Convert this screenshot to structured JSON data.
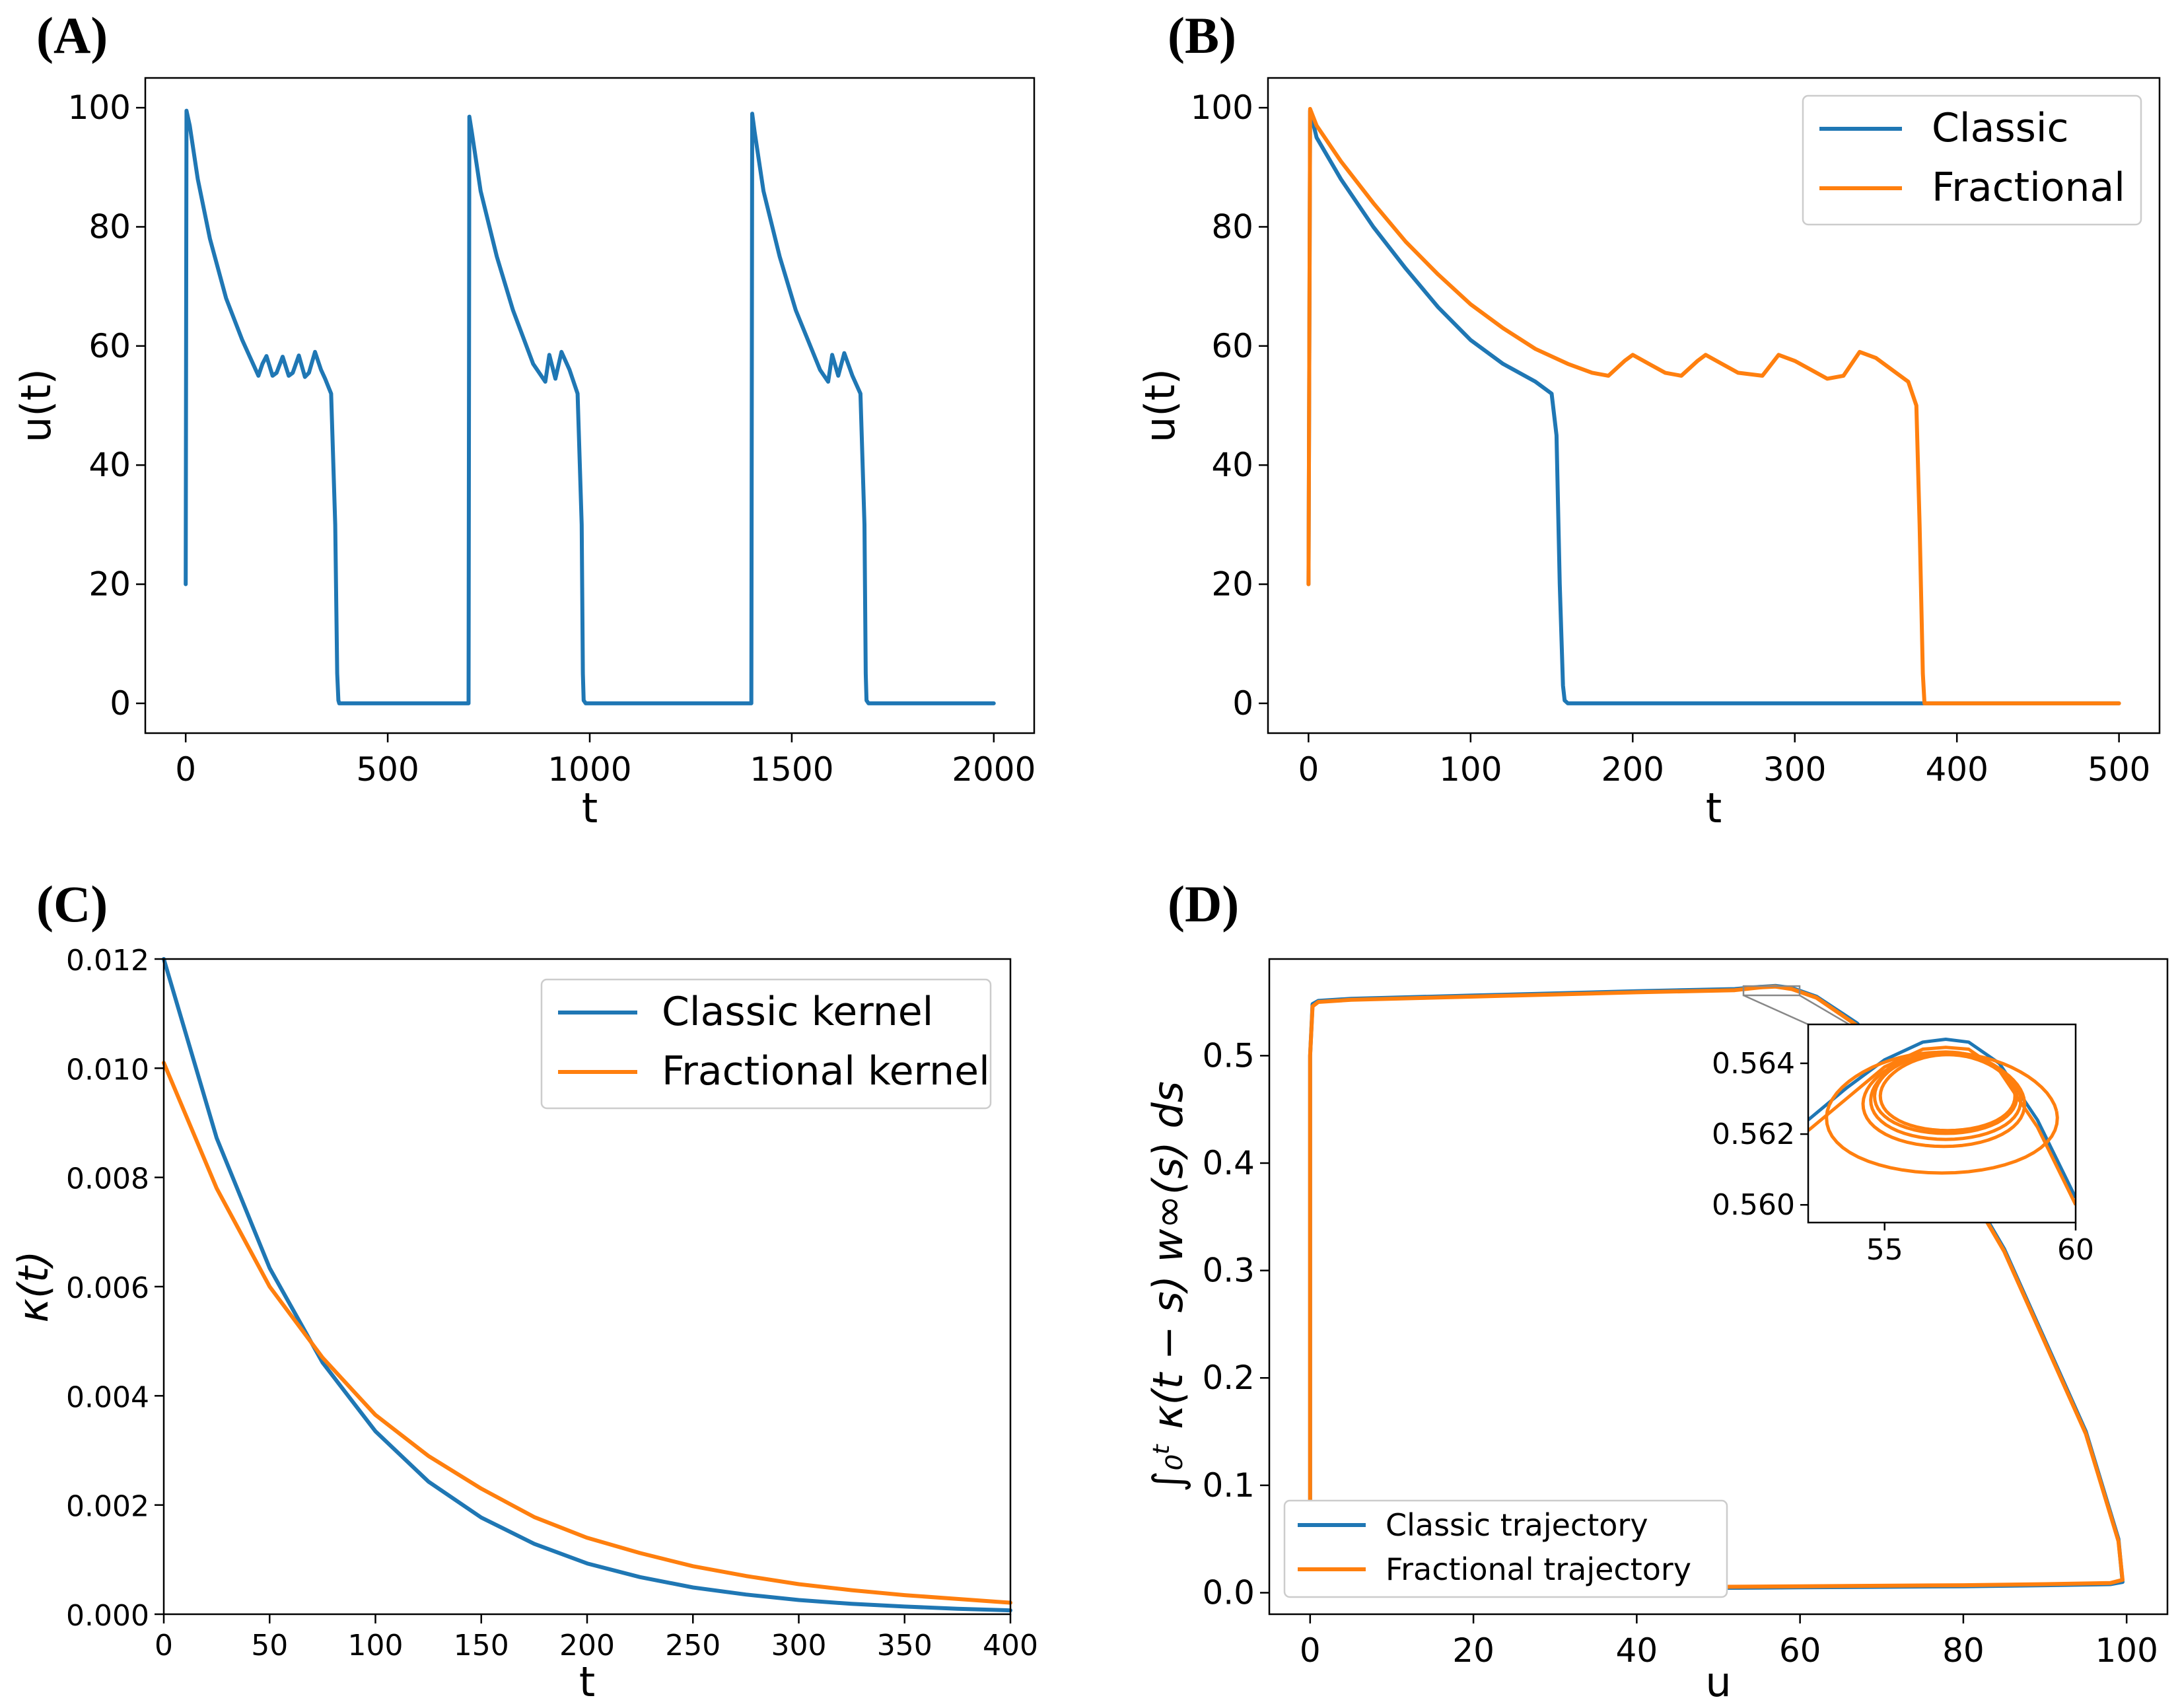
{
  "colors": {
    "classic": "#1f77b4",
    "fractional": "#ff7f0e"
  },
  "chart_data": [
    {
      "panel": "(A)",
      "type": "line",
      "xlabel": "t",
      "ylabel": "u(t)",
      "xlim": [
        -100,
        2100
      ],
      "ylim": [
        -5,
        105
      ],
      "xticks": [
        0,
        500,
        1000,
        1500,
        2000
      ],
      "xtick_labels": [
        "0",
        "500",
        "1000",
        "1500",
        "2000"
      ],
      "yticks": [
        0,
        20,
        40,
        60,
        80,
        100
      ],
      "ytick_labels": [
        "0",
        "20",
        "40",
        "60",
        "80",
        "100"
      ],
      "series": [
        {
          "name": "u(t)",
          "color": "#1f77b4",
          "x": [
            0,
            2,
            10,
            30,
            60,
            100,
            140,
            180,
            190,
            200,
            215,
            225,
            240,
            255,
            265,
            280,
            295,
            305,
            320,
            335,
            345,
            360,
            370,
            375,
            378,
            380,
            385,
            700,
            702,
            708,
            730,
            770,
            810,
            860,
            890,
            900,
            915,
            930,
            950,
            970,
            980,
            983,
            985,
            990,
            1400,
            1402,
            1408,
            1430,
            1470,
            1510,
            1570,
            1590,
            1600,
            1615,
            1630,
            1650,
            1670,
            1680,
            1683,
            1685,
            1690,
            2000
          ],
          "y": [
            20,
            99.5,
            97,
            88,
            78,
            68,
            61,
            55,
            57,
            58.3,
            55,
            55.5,
            58.2,
            55,
            55.5,
            58.4,
            54.8,
            55.5,
            59,
            56,
            54.5,
            52,
            30,
            5,
            0.5,
            0,
            0,
            0,
            98.5,
            96,
            86,
            75,
            66,
            57,
            54,
            58.5,
            54.5,
            59,
            56,
            52,
            30,
            5,
            0.5,
            0,
            0,
            99,
            96,
            86,
            75,
            66,
            56,
            54,
            58.5,
            55,
            58.8,
            55,
            52,
            30,
            5,
            0.5,
            0,
            0
          ]
        }
      ]
    },
    {
      "panel": "(B)",
      "type": "line",
      "xlabel": "t",
      "ylabel": "u(t)",
      "xlim": [
        -25,
        525
      ],
      "ylim": [
        -5,
        105
      ],
      "xticks": [
        0,
        100,
        200,
        300,
        400,
        500
      ],
      "xtick_labels": [
        "0",
        "100",
        "200",
        "300",
        "400",
        "500"
      ],
      "yticks": [
        0,
        20,
        40,
        60,
        80,
        100
      ],
      "ytick_labels": [
        "0",
        "20",
        "40",
        "60",
        "80",
        "100"
      ],
      "legend_location": "upper right",
      "series": [
        {
          "name": "Classic",
          "color": "#1f77b4",
          "x": [
            0,
            1,
            5,
            20,
            40,
            60,
            80,
            100,
            120,
            140,
            150,
            153,
            155,
            157,
            158,
            160,
            500
          ],
          "y": [
            20,
            99.5,
            95,
            88,
            80,
            73,
            66.5,
            61,
            57,
            54,
            52,
            45,
            20,
            3,
            0.5,
            0,
            0
          ]
        },
        {
          "name": "Fractional",
          "color": "#ff7f0e",
          "x": [
            0,
            1,
            5,
            20,
            40,
            60,
            80,
            100,
            120,
            140,
            160,
            175,
            185,
            195,
            200,
            210,
            220,
            230,
            240,
            245,
            255,
            265,
            280,
            290,
            300,
            310,
            320,
            330,
            340,
            350,
            360,
            370,
            375,
            377,
            379,
            380,
            500
          ],
          "y": [
            20,
            99.8,
            97,
            91,
            84,
            77.5,
            72,
            67,
            63,
            59.5,
            57,
            55.5,
            55,
            57.5,
            58.5,
            57,
            55.5,
            55,
            57.5,
            58.5,
            57,
            55.5,
            55,
            58.5,
            57.5,
            56,
            54.5,
            55,
            59,
            58,
            56,
            54,
            50,
            30,
            5,
            0,
            0
          ]
        }
      ]
    },
    {
      "panel": "(C)",
      "type": "line",
      "xlabel": "t",
      "ylabel": "κ(t)",
      "xlim": [
        0,
        400
      ],
      "ylim": [
        0,
        0.012
      ],
      "xticks": [
        0,
        50,
        100,
        150,
        200,
        250,
        300,
        350,
        400
      ],
      "xtick_labels": [
        "0",
        "50",
        "100",
        "150",
        "200",
        "250",
        "300",
        "350",
        "400"
      ],
      "yticks": [
        0,
        0.002,
        0.004,
        0.006,
        0.008,
        0.01,
        0.012
      ],
      "ytick_labels": [
        "0.000",
        "0.002",
        "0.004",
        "0.006",
        "0.008",
        "0.010",
        "0.012"
      ],
      "legend_location": "upper right",
      "series": [
        {
          "name": "Classic kernel",
          "color": "#1f77b4",
          "x": [
            0,
            25,
            50,
            75,
            100,
            125,
            150,
            175,
            200,
            225,
            250,
            275,
            300,
            325,
            350,
            375,
            400
          ],
          "y": [
            0.012,
            0.00872,
            0.00634,
            0.00461,
            0.00335,
            0.00243,
            0.00177,
            0.00129,
            0.00093,
            0.00068,
            0.00049,
            0.00036,
            0.00026,
            0.00019,
            0.00014,
            0.0001,
            7e-05
          ]
        },
        {
          "name": "Fractional kernel",
          "color": "#ff7f0e",
          "x": [
            0,
            25,
            50,
            75,
            100,
            125,
            150,
            175,
            200,
            225,
            250,
            275,
            300,
            325,
            350,
            375,
            400
          ],
          "y": [
            0.0101,
            0.0078,
            0.006,
            0.0047,
            0.00365,
            0.0029,
            0.0023,
            0.00178,
            0.0014,
            0.00112,
            0.00088,
            0.0007,
            0.00055,
            0.00044,
            0.00035,
            0.00028,
            0.00021
          ]
        }
      ]
    },
    {
      "panel": "(D)",
      "type": "line",
      "xlabel": "u",
      "ylabel": "∫₀ᵗ κ(t − s) w∞(s) ds",
      "xlim": [
        -5,
        105
      ],
      "ylim": [
        -0.02,
        0.59
      ],
      "xticks": [
        0,
        20,
        40,
        60,
        80,
        100
      ],
      "xtick_labels": [
        "0",
        "20",
        "40",
        "60",
        "80",
        "100"
      ],
      "yticks": [
        0.0,
        0.1,
        0.2,
        0.3,
        0.4,
        0.5
      ],
      "ytick_labels": [
        "0.0",
        "0.1",
        "0.2",
        "0.3",
        "0.4",
        "0.5"
      ],
      "legend_location": "lower left",
      "series": [
        {
          "name": "Classic trajectory",
          "color": "#1f77b4",
          "x": [
            0,
            0,
            0.3,
            1,
            5,
            20,
            40,
            52,
            55,
            57,
            59,
            62,
            67,
            75,
            85,
            95,
            99,
            99.5,
            98,
            90,
            80,
            60,
            40,
            20,
            5,
            1,
            0.3,
            0
          ],
          "y": [
            0.02,
            0.5,
            0.548,
            0.551,
            0.553,
            0.556,
            0.56,
            0.562,
            0.564,
            0.565,
            0.563,
            0.555,
            0.53,
            0.45,
            0.32,
            0.15,
            0.05,
            0.01,
            0.008,
            0.007,
            0.006,
            0.005,
            0.004,
            0.004,
            0.003,
            0.003,
            0.002,
            0.02
          ]
        },
        {
          "name": "Fractional trajectory",
          "color": "#ff7f0e",
          "x": [
            0,
            0,
            0.3,
            1,
            5,
            20,
            40,
            52,
            55,
            57,
            59,
            62,
            67,
            75,
            85,
            95,
            99,
            99.5,
            98,
            90,
            80,
            60,
            40,
            20,
            5,
            1,
            0.3,
            0
          ],
          "y": [
            0.015,
            0.5,
            0.546,
            0.55,
            0.552,
            0.555,
            0.559,
            0.561,
            0.5635,
            0.5643,
            0.562,
            0.554,
            0.528,
            0.448,
            0.318,
            0.148,
            0.048,
            0.012,
            0.009,
            0.008,
            0.007,
            0.006,
            0.005,
            0.004,
            0.003,
            0.003,
            0.002,
            0.015
          ]
        }
      ],
      "inset": {
        "xlim": [
          53,
          60
        ],
        "ylim": [
          0.5595,
          0.5651
        ],
        "xticks": [
          55,
          60
        ],
        "xtick_labels": [
          "55",
          "60"
        ],
        "yticks": [
          0.56,
          0.562,
          0.564
        ],
        "ytick_labels": [
          "0.560",
          "0.562",
          "0.564"
        ]
      }
    }
  ],
  "legend": {
    "b": [
      "Classic",
      "Fractional"
    ],
    "c": [
      "Classic kernel",
      "Fractional kernel"
    ],
    "d": [
      "Classic trajectory",
      "Fractional trajectory"
    ]
  }
}
